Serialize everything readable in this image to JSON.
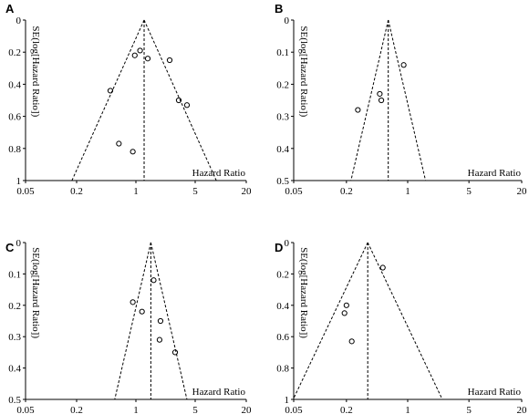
{
  "chart_data": [
    {
      "panel": "A",
      "type": "scatter",
      "xlabel": "Hazard Ratio",
      "ylabel": "SE(log[Hazard Ratio])",
      "x_scale": "log",
      "x_ticks": [
        0.05,
        0.2,
        1,
        5,
        20
      ],
      "x_tick_labels": [
        "0.05",
        "0.2",
        "1",
        "5",
        "20"
      ],
      "y_ticks": [
        0,
        0.2,
        0.4,
        0.6,
        0.8,
        1
      ],
      "y_tick_labels": [
        "0",
        "0.2",
        "0.4",
        "0.6",
        "0.8",
        "1"
      ],
      "xlim": [
        0.05,
        20
      ],
      "ylim": [
        0,
        1
      ],
      "pooled_hr": 1.25,
      "points": [
        {
          "x": 0.97,
          "y": 0.22
        },
        {
          "x": 1.12,
          "y": 0.19
        },
        {
          "x": 1.38,
          "y": 0.24
        },
        {
          "x": 2.5,
          "y": 0.25
        },
        {
          "x": 0.5,
          "y": 0.44
        },
        {
          "x": 3.2,
          "y": 0.5
        },
        {
          "x": 4.0,
          "y": 0.53
        },
        {
          "x": 0.63,
          "y": 0.77
        },
        {
          "x": 0.92,
          "y": 0.82
        }
      ]
    },
    {
      "panel": "B",
      "type": "scatter",
      "xlabel": "Hazard Ratio",
      "ylabel": "SE(log[Hazard Ratio])",
      "x_scale": "log",
      "x_ticks": [
        0.05,
        0.2,
        1,
        5,
        20
      ],
      "x_tick_labels": [
        "0.05",
        "0.2",
        "1",
        "5",
        "20"
      ],
      "y_ticks": [
        0,
        0.1,
        0.2,
        0.3,
        0.4,
        0.5
      ],
      "y_tick_labels": [
        "0",
        "0.1",
        "0.2",
        "0.3",
        "0.4",
        "0.5"
      ],
      "xlim": [
        0.05,
        20
      ],
      "ylim": [
        0,
        0.5
      ],
      "pooled_hr": 0.6,
      "points": [
        {
          "x": 0.9,
          "y": 0.14
        },
        {
          "x": 0.48,
          "y": 0.23
        },
        {
          "x": 0.5,
          "y": 0.25
        },
        {
          "x": 0.27,
          "y": 0.28
        }
      ]
    },
    {
      "panel": "C",
      "type": "scatter",
      "xlabel": "Hazard Ratio",
      "ylabel": "SE(log[Hazard Ratio])",
      "x_scale": "log",
      "x_ticks": [
        0.05,
        0.2,
        1,
        5,
        20
      ],
      "x_tick_labels": [
        "0.05",
        "0.2",
        "1",
        "5",
        "20"
      ],
      "y_ticks": [
        0,
        0.1,
        0.2,
        0.3,
        0.4,
        0.5
      ],
      "y_tick_labels": [
        "0",
        "0.1",
        "0.2",
        "0.3",
        "0.4",
        "0.5"
      ],
      "xlim": [
        0.05,
        20
      ],
      "ylim": [
        0,
        0.5
      ],
      "pooled_hr": 1.5,
      "points": [
        {
          "x": 1.62,
          "y": 0.12
        },
        {
          "x": 0.92,
          "y": 0.19
        },
        {
          "x": 1.18,
          "y": 0.22
        },
        {
          "x": 1.95,
          "y": 0.25
        },
        {
          "x": 1.9,
          "y": 0.31
        },
        {
          "x": 2.9,
          "y": 0.35
        }
      ]
    },
    {
      "panel": "D",
      "type": "scatter",
      "xlabel": "Hazard Ratio",
      "ylabel": "SE(log[Hazard Ratio])",
      "x_scale": "log",
      "x_ticks": [
        0.05,
        0.2,
        1,
        5,
        20
      ],
      "x_tick_labels": [
        "0.05",
        "0.2",
        "1",
        "5",
        "20"
      ],
      "y_ticks": [
        0,
        0.2,
        0.4,
        0.6,
        0.8,
        1
      ],
      "y_tick_labels": [
        "0",
        "0.2",
        "0.4",
        "0.6",
        "0.8",
        "1"
      ],
      "xlim": [
        0.05,
        20
      ],
      "ylim": [
        0,
        1
      ],
      "pooled_hr": 0.35,
      "points": [
        {
          "x": 0.52,
          "y": 0.16
        },
        {
          "x": 0.2,
          "y": 0.4
        },
        {
          "x": 0.19,
          "y": 0.45
        },
        {
          "x": 0.23,
          "y": 0.63
        }
      ]
    }
  ]
}
